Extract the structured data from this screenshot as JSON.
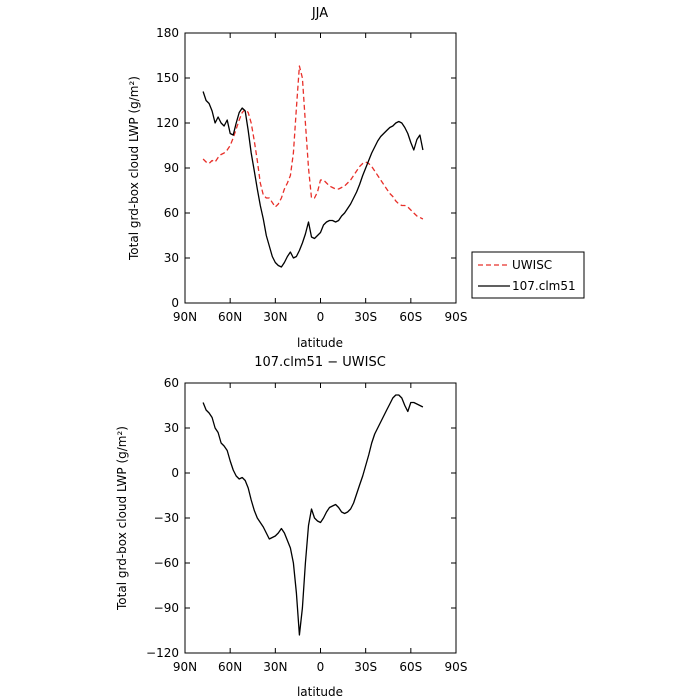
{
  "chart_data": [
    {
      "type": "line",
      "title": "JJA",
      "xlabel": "latitude",
      "ylabel": "Total grd-box cloud LWP (g/m²)",
      "xlim": [
        90,
        -90
      ],
      "ylim": [
        0,
        180
      ],
      "xticks": [
        90,
        60,
        30,
        0,
        -30,
        -60,
        -90
      ],
      "xtick_labels": [
        "90N",
        "60N",
        "30N",
        "0",
        "30S",
        "60S",
        "90S"
      ],
      "yticks": [
        0,
        30,
        60,
        90,
        120,
        150,
        180
      ],
      "ytick_labels": [
        "0",
        "30",
        "60",
        "90",
        "120",
        "150",
        "180"
      ],
      "legend": {
        "placement": "right",
        "entries": [
          "UWISC",
          "107.clm51"
        ]
      },
      "series": [
        {
          "name": "UWISC",
          "color": "#e8302a",
          "dash": "dashed",
          "x": [
            78,
            76,
            74,
            72,
            70,
            68,
            66,
            64,
            62,
            60,
            58,
            56,
            54,
            52,
            50,
            48,
            46,
            44,
            42,
            40,
            38,
            36,
            34,
            32,
            30,
            28,
            26,
            24,
            22,
            20,
            18,
            16,
            14,
            12,
            10,
            8,
            6,
            4,
            2,
            0,
            -2,
            -4,
            -6,
            -8,
            -10,
            -12,
            -14,
            -16,
            -18,
            -20,
            -22,
            -24,
            -26,
            -28,
            -30,
            -32,
            -34,
            -36,
            -38,
            -40,
            -42,
            -44,
            -46,
            -48,
            -50,
            -52,
            -54,
            -56,
            -58,
            -60,
            -62,
            -64,
            -66,
            -68
          ],
          "y": [
            96,
            94,
            93,
            95,
            94,
            97,
            99,
            100,
            102,
            105,
            110,
            116,
            122,
            127,
            129,
            127,
            120,
            108,
            95,
            80,
            72,
            70,
            70,
            67,
            64,
            66,
            70,
            76,
            80,
            85,
            100,
            130,
            158,
            150,
            120,
            90,
            70,
            70,
            74,
            82,
            82,
            80,
            78,
            77,
            76,
            76,
            77,
            78,
            80,
            82,
            85,
            88,
            91,
            93,
            94,
            93,
            91,
            88,
            85,
            82,
            79,
            76,
            73,
            71,
            68,
            66,
            65,
            65,
            64,
            62,
            60,
            58,
            57,
            56
          ]
        },
        {
          "name": "107.clm51",
          "color": "#000000",
          "dash": "solid",
          "x": [
            78,
            76,
            74,
            72,
            70,
            68,
            66,
            64,
            62,
            60,
            58,
            56,
            54,
            52,
            50,
            48,
            46,
            44,
            42,
            40,
            38,
            36,
            34,
            32,
            30,
            28,
            26,
            24,
            22,
            20,
            18,
            16,
            14,
            12,
            10,
            8,
            6,
            4,
            2,
            0,
            -2,
            -4,
            -6,
            -8,
            -10,
            -12,
            -14,
            -16,
            -18,
            -20,
            -22,
            -24,
            -26,
            -28,
            -30,
            -32,
            -34,
            -36,
            -38,
            -40,
            -42,
            -44,
            -46,
            -48,
            -50,
            -52,
            -54,
            -56,
            -58,
            -60,
            -62,
            -64,
            -66,
            -68
          ],
          "y": [
            141,
            135,
            133,
            128,
            120,
            124,
            120,
            118,
            122,
            113,
            112,
            120,
            127,
            130,
            128,
            115,
            100,
            88,
            76,
            65,
            56,
            45,
            38,
            31,
            27,
            25,
            24,
            27,
            31,
            34,
            30,
            31,
            35,
            40,
            46,
            54,
            44,
            43,
            45,
            47,
            52,
            54,
            55,
            55,
            54,
            55,
            58,
            60,
            63,
            66,
            70,
            74,
            79,
            85,
            90,
            95,
            100,
            104,
            108,
            111,
            113,
            115,
            117,
            118,
            120,
            121,
            120,
            117,
            113,
            107,
            102,
            109,
            112,
            102
          ]
        }
      ]
    },
    {
      "type": "line",
      "title": "107.clm51  −  UWISC",
      "xlabel": "latitude",
      "ylabel": "Total grd-box cloud LWP (g/m²)",
      "xlim": [
        90,
        -90
      ],
      "ylim": [
        -120,
        60
      ],
      "xticks": [
        90,
        60,
        30,
        0,
        -30,
        -60,
        -90
      ],
      "xtick_labels": [
        "90N",
        "60N",
        "30N",
        "0",
        "30S",
        "60S",
        "90S"
      ],
      "yticks": [
        -120,
        -90,
        -60,
        -30,
        0,
        30,
        60
      ],
      "ytick_labels": [
        "−120",
        "−90",
        "−60",
        "−30",
        "0",
        "30",
        "60"
      ],
      "series": [
        {
          "color": "#000000",
          "dash": "solid",
          "x": [
            78,
            76,
            74,
            72,
            70,
            68,
            66,
            64,
            62,
            60,
            58,
            56,
            54,
            52,
            50,
            48,
            46,
            44,
            42,
            40,
            38,
            36,
            34,
            32,
            30,
            28,
            26,
            24,
            22,
            20,
            18,
            16,
            14,
            12,
            10,
            8,
            6,
            4,
            2,
            0,
            -2,
            -4,
            -6,
            -8,
            -10,
            -12,
            -14,
            -16,
            -18,
            -20,
            -22,
            -24,
            -26,
            -28,
            -30,
            -32,
            -34,
            -36,
            -38,
            -40,
            -42,
            -44,
            -46,
            -48,
            -50,
            -52,
            -54,
            -56,
            -58,
            -60,
            -62,
            -64,
            -66,
            -68
          ],
          "y": [
            47,
            42,
            40,
            37,
            30,
            27,
            20,
            18,
            15,
            8,
            2,
            -2,
            -4,
            -3,
            -5,
            -10,
            -18,
            -25,
            -30,
            -33,
            -36,
            -40,
            -44,
            -43,
            -42,
            -40,
            -37,
            -40,
            -45,
            -50,
            -60,
            -80,
            -108,
            -90,
            -60,
            -35,
            -24,
            -30,
            -32,
            -33,
            -30,
            -26,
            -23,
            -22,
            -21,
            -23,
            -26,
            -27,
            -26,
            -24,
            -20,
            -14,
            -8,
            -2,
            5,
            12,
            20,
            26,
            30,
            34,
            38,
            42,
            46,
            50,
            52,
            52,
            50,
            45,
            41,
            47,
            47,
            46,
            45,
            44
          ]
        }
      ]
    }
  ]
}
